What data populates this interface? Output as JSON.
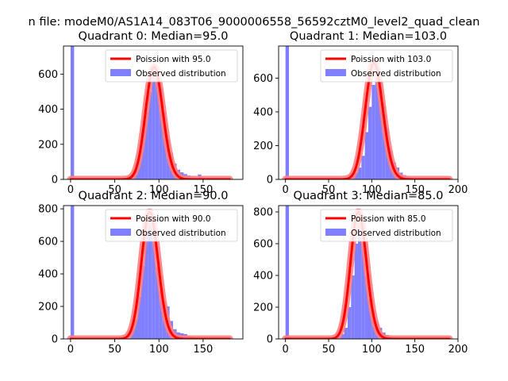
{
  "figure": {
    "suptitle": "n file: modeM0/AS1A14_083T06_9000006558_56592cztM0_level2_quad_clean",
    "background": "#ffffff"
  },
  "colors": {
    "hist": "#7f7fff",
    "poisson_line": "#ff0000",
    "poisson_glow": "#ff7f7f",
    "axis": "#000000"
  },
  "chart_data": [
    {
      "type": "bar",
      "title": "Quadrant 0: Median=95.0",
      "xlim": [
        -8,
        195
      ],
      "ylim": [
        0,
        760
      ],
      "xticks": [
        0,
        50,
        100,
        150
      ],
      "yticks": [
        0,
        200,
        400,
        600
      ],
      "legend": {
        "position": "top-right",
        "line_label": "Poission with 95.0",
        "hist_label": "Observed distribution"
      },
      "poisson_mean": 95.0,
      "poisson_peak": 640,
      "poisson_range": [
        0,
        180
      ],
      "bin_width": 4,
      "bins": [
        [
          0,
          760
        ],
        [
          60,
          8
        ],
        [
          64,
          18
        ],
        [
          68,
          30
        ],
        [
          72,
          60
        ],
        [
          76,
          120
        ],
        [
          80,
          280
        ],
        [
          84,
          380
        ],
        [
          88,
          500
        ],
        [
          92,
          590
        ],
        [
          96,
          600
        ],
        [
          100,
          520
        ],
        [
          104,
          380
        ],
        [
          108,
          230
        ],
        [
          112,
          150
        ],
        [
          116,
          90
        ],
        [
          120,
          55
        ],
        [
          124,
          40
        ],
        [
          128,
          30
        ],
        [
          132,
          22
        ],
        [
          136,
          12
        ],
        [
          140,
          8
        ],
        [
          144,
          28
        ],
        [
          148,
          10
        ],
        [
          152,
          6
        ],
        [
          156,
          4
        ],
        [
          160,
          3
        ]
      ]
    },
    {
      "type": "bar",
      "title": "Quadrant 1: Median=103.0",
      "xlim": [
        -8,
        200
      ],
      "ylim": [
        0,
        790
      ],
      "xticks": [
        0,
        50,
        100,
        150,
        200
      ],
      "yticks": [
        0,
        200,
        400,
        600
      ],
      "legend": {
        "position": "top-right",
        "line_label": "Poission with 103.0",
        "hist_label": "Observed distribution"
      },
      "poisson_mean": 103.0,
      "poisson_peak": 690,
      "poisson_range": [
        0,
        190
      ],
      "bin_width": 4,
      "bins": [
        [
          0,
          790
        ],
        [
          64,
          3
        ],
        [
          68,
          5
        ],
        [
          72,
          10
        ],
        [
          76,
          20
        ],
        [
          80,
          40
        ],
        [
          84,
          70
        ],
        [
          88,
          140
        ],
        [
          92,
          280
        ],
        [
          96,
          430
        ],
        [
          100,
          560
        ],
        [
          104,
          610
        ],
        [
          108,
          600
        ],
        [
          112,
          430
        ],
        [
          116,
          300
        ],
        [
          120,
          170
        ],
        [
          124,
          100
        ],
        [
          128,
          70
        ],
        [
          132,
          40
        ],
        [
          136,
          25
        ],
        [
          140,
          15
        ],
        [
          144,
          10
        ],
        [
          148,
          7
        ],
        [
          152,
          4
        ]
      ]
    },
    {
      "type": "bar",
      "title": "Quadrant 2: Median=90.0",
      "xlim": [
        -8,
        195
      ],
      "ylim": [
        0,
        820
      ],
      "xticks": [
        0,
        50,
        100,
        150
      ],
      "yticks": [
        0,
        200,
        400,
        600,
        800
      ],
      "legend": {
        "position": "top-right",
        "line_label": "Poission with 90.0",
        "hist_label": "Observed distribution"
      },
      "poisson_mean": 90.0,
      "poisson_peak": 780,
      "poisson_range": [
        0,
        180
      ],
      "bin_width": 4,
      "bins": [
        [
          0,
          820
        ],
        [
          56,
          8
        ],
        [
          60,
          14
        ],
        [
          64,
          28
        ],
        [
          68,
          60
        ],
        [
          72,
          120
        ],
        [
          76,
          260
        ],
        [
          80,
          450
        ],
        [
          84,
          640
        ],
        [
          88,
          700
        ],
        [
          92,
          600
        ],
        [
          96,
          440
        ],
        [
          100,
          300
        ],
        [
          104,
          230
        ],
        [
          108,
          200
        ],
        [
          112,
          110
        ],
        [
          116,
          60
        ],
        [
          120,
          40
        ],
        [
          124,
          35
        ],
        [
          128,
          30
        ],
        [
          132,
          20
        ],
        [
          136,
          15
        ],
        [
          140,
          10
        ],
        [
          144,
          7
        ],
        [
          148,
          5
        ],
        [
          152,
          3
        ]
      ]
    },
    {
      "type": "bar",
      "title": "Quadrant 3: Median=85.0",
      "xlim": [
        -8,
        200
      ],
      "ylim": [
        0,
        840
      ],
      "xticks": [
        0,
        50,
        100,
        150,
        200
      ],
      "yticks": [
        0,
        200,
        400,
        600,
        800
      ],
      "legend": {
        "position": "top-right",
        "line_label": "Poission with 85.0",
        "hist_label": "Observed distribution"
      },
      "poisson_mean": 85.0,
      "poisson_peak": 800,
      "poisson_range": [
        0,
        190
      ],
      "bin_width": 4,
      "bins": [
        [
          0,
          840
        ],
        [
          56,
          5
        ],
        [
          60,
          15
        ],
        [
          64,
          30
        ],
        [
          68,
          70
        ],
        [
          72,
          200
        ],
        [
          76,
          400
        ],
        [
          80,
          600
        ],
        [
          84,
          720
        ],
        [
          88,
          600
        ],
        [
          92,
          400
        ],
        [
          96,
          250
        ],
        [
          100,
          180
        ],
        [
          104,
          110
        ],
        [
          108,
          70
        ],
        [
          112,
          40
        ],
        [
          116,
          25
        ],
        [
          120,
          15
        ],
        [
          124,
          12
        ],
        [
          128,
          10
        ],
        [
          132,
          8
        ],
        [
          136,
          6
        ],
        [
          140,
          4
        ]
      ]
    }
  ]
}
